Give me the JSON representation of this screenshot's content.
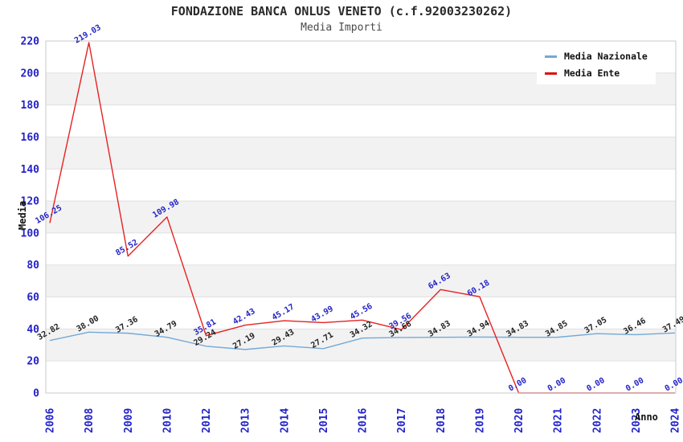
{
  "chart_data": {
    "type": "line",
    "title": "FONDAZIONE BANCA ONLUS VENETO (c.f.92003230262)",
    "subtitle": "Media Importi",
    "xlabel": "Anno",
    "ylabel": "Media",
    "categories": [
      "2006",
      "2008",
      "2009",
      "2010",
      "2012",
      "2013",
      "2014",
      "2015",
      "2016",
      "2017",
      "2018",
      "2019",
      "2020",
      "2021",
      "2022",
      "2023",
      "2024"
    ],
    "series": [
      {
        "name": "Media Nazionale",
        "color": "#74a9d6",
        "label_color": "#222222",
        "values": [
          32.82,
          38.0,
          37.36,
          34.79,
          29.24,
          27.19,
          29.43,
          27.71,
          34.32,
          34.68,
          34.83,
          34.94,
          34.83,
          34.85,
          37.05,
          36.46,
          37.49
        ]
      },
      {
        "name": "Media Ente",
        "color": "#e62222",
        "label_color": "#2323c8",
        "values": [
          106.25,
          219.03,
          85.52,
          109.98,
          35.81,
          42.43,
          45.17,
          43.99,
          45.56,
          39.56,
          64.63,
          60.18,
          0.0,
          0.0,
          0.0,
          0.0,
          0.0
        ]
      }
    ],
    "ylim": [
      0,
      220
    ],
    "ytick_step": 20,
    "grid": "horizontal-bands",
    "legend_position": "top-right",
    "colors": {
      "tick_label": "#2323c8",
      "band_fill": "#f2f2f2",
      "gridline": "#e0e0e0",
      "plot_border": "#c9c9c9",
      "legend_marker_nazionale": "#74a9d6",
      "legend_marker_ente": "#dd1111"
    }
  }
}
